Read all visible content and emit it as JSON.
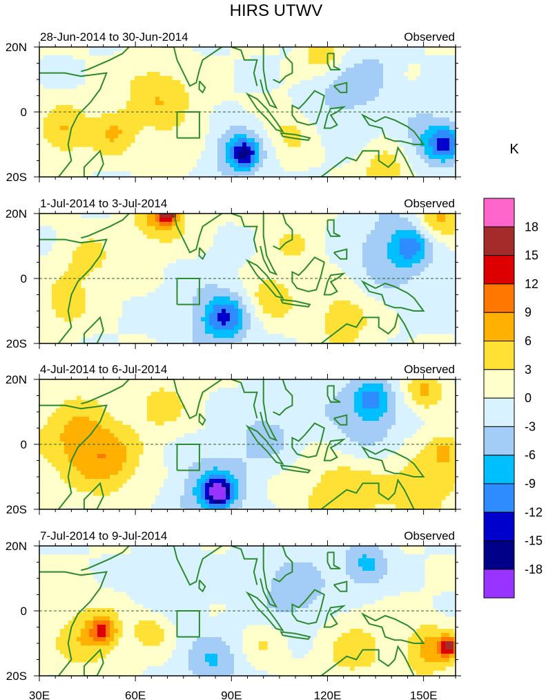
{
  "title": "HIRS UTWV",
  "colors": {
    "coast": "#2b8a2b",
    "frame": "#000000",
    "levels": [
      "#9933ff",
      "#000088",
      "#0000cc",
      "#2f8cff",
      "#00bfff",
      "#a3cdf7",
      "#d9f2ff",
      "#ffffcc",
      "#ffe135",
      "#ffb000",
      "#ff7700",
      "#dd0000",
      "#a52a2a",
      "#ff66cc"
    ]
  },
  "chart_data": {
    "type": "heatmap",
    "title": "HIRS UTWV",
    "xlabel": "",
    "ylabel": "",
    "xlim": [
      30,
      160
    ],
    "ylim": [
      -20,
      20
    ],
    "x_ticks": [
      "30E",
      "60E",
      "90E",
      "120E",
      "150E"
    ],
    "y_ticks": [
      "20N",
      "0",
      "20S"
    ],
    "colorbar": {
      "unit": "K",
      "levels": [
        "18",
        "15",
        "12",
        "9",
        "6",
        "3",
        "0",
        "-3",
        "-6",
        "-9",
        "-12",
        "-15",
        "-18"
      ]
    },
    "panels": [
      {
        "date_range": "28-Jun-2014 to 30-Jun-2014",
        "label": "Observed",
        "anomalies": [
          {
            "lon": 38,
            "lat": -6,
            "radius": 8,
            "value": 6
          },
          {
            "lon": 53,
            "lat": -6,
            "radius": 7,
            "value": 6
          },
          {
            "lon": 66,
            "lat": 6,
            "radius": 10,
            "value": 5
          },
          {
            "lon": 75,
            "lat": -3,
            "radius": 12,
            "value": 2
          },
          {
            "lon": 92,
            "lat": -12,
            "radius": 9,
            "value": -7
          },
          {
            "lon": 94,
            "lat": -13,
            "radius": 4,
            "value": -10
          },
          {
            "lon": 108,
            "lat": -6,
            "radius": 8,
            "value": 4
          },
          {
            "lon": 125,
            "lat": 4,
            "radius": 12,
            "value": -4
          },
          {
            "lon": 135,
            "lat": 12,
            "radius": 7,
            "value": -3
          },
          {
            "lon": 152,
            "lat": -8,
            "radius": 9,
            "value": -6
          },
          {
            "lon": 157,
            "lat": -10,
            "radius": 5,
            "value": -9
          },
          {
            "lon": 118,
            "lat": 18,
            "radius": 6,
            "value": 6
          },
          {
            "lon": 138,
            "lat": -18,
            "radius": 8,
            "value": 5
          }
        ]
      },
      {
        "date_range": "1-Jul-2014 to 3-Jul-2014",
        "label": "Observed",
        "anomalies": [
          {
            "lon": 68,
            "lat": 19,
            "radius": 8,
            "value": 8
          },
          {
            "lon": 70,
            "lat": 20,
            "radius": 3,
            "value": 11
          },
          {
            "lon": 45,
            "lat": 5,
            "radius": 9,
            "value": 4
          },
          {
            "lon": 38,
            "lat": -8,
            "radius": 7,
            "value": 5
          },
          {
            "lon": 85,
            "lat": -12,
            "radius": 12,
            "value": -5
          },
          {
            "lon": 88,
            "lat": -12,
            "radius": 6,
            "value": -8
          },
          {
            "lon": 102,
            "lat": -6,
            "radius": 7,
            "value": 6
          },
          {
            "lon": 110,
            "lat": 10,
            "radius": 9,
            "value": 3
          },
          {
            "lon": 140,
            "lat": 8,
            "radius": 14,
            "value": -5
          },
          {
            "lon": 146,
            "lat": 10,
            "radius": 6,
            "value": -7
          },
          {
            "lon": 125,
            "lat": -12,
            "radius": 10,
            "value": 5
          },
          {
            "lon": 155,
            "lat": 18,
            "radius": 7,
            "value": 7
          }
        ]
      },
      {
        "date_range": "4-Jul-2014 to 6-Jul-2014",
        "label": "Observed",
        "anomalies": [
          {
            "lon": 42,
            "lat": 2,
            "radius": 12,
            "value": 7
          },
          {
            "lon": 52,
            "lat": -6,
            "radius": 10,
            "value": 6
          },
          {
            "lon": 68,
            "lat": 12,
            "radius": 9,
            "value": 4
          },
          {
            "lon": 84,
            "lat": -14,
            "radius": 10,
            "value": -8
          },
          {
            "lon": 86,
            "lat": -15,
            "radius": 4,
            "value": -15
          },
          {
            "lon": 100,
            "lat": 2,
            "radius": 10,
            "value": -4
          },
          {
            "lon": 130,
            "lat": 6,
            "radius": 14,
            "value": -5
          },
          {
            "lon": 134,
            "lat": 14,
            "radius": 6,
            "value": -8
          },
          {
            "lon": 125,
            "lat": -14,
            "radius": 14,
            "value": 6
          },
          {
            "lon": 150,
            "lat": -12,
            "radius": 10,
            "value": 6
          },
          {
            "lon": 150,
            "lat": 16,
            "radius": 6,
            "value": 7
          },
          {
            "lon": 157,
            "lat": -2,
            "radius": 5,
            "value": 6
          }
        ]
      },
      {
        "date_range": "7-Jul-2014 to 9-Jul-2014",
        "label": "Observed",
        "anomalies": [
          {
            "lon": 45,
            "lat": -8,
            "radius": 10,
            "value": 6
          },
          {
            "lon": 50,
            "lat": -6,
            "radius": 4,
            "value": 9
          },
          {
            "lon": 65,
            "lat": -6,
            "radius": 6,
            "value": 5
          },
          {
            "lon": 84,
            "lat": -16,
            "radius": 9,
            "value": -6
          },
          {
            "lon": 110,
            "lat": 6,
            "radius": 12,
            "value": -5
          },
          {
            "lon": 132,
            "lat": 14,
            "radius": 7,
            "value": -7
          },
          {
            "lon": 128,
            "lat": -12,
            "radius": 12,
            "value": 4
          },
          {
            "lon": 152,
            "lat": -12,
            "radius": 8,
            "value": 7
          },
          {
            "lon": 158,
            "lat": -11,
            "radius": 3,
            "value": 13
          },
          {
            "lon": 100,
            "lat": -10,
            "radius": 7,
            "value": 3
          },
          {
            "lon": 72,
            "lat": 8,
            "radius": 10,
            "value": -3
          }
        ]
      }
    ]
  }
}
